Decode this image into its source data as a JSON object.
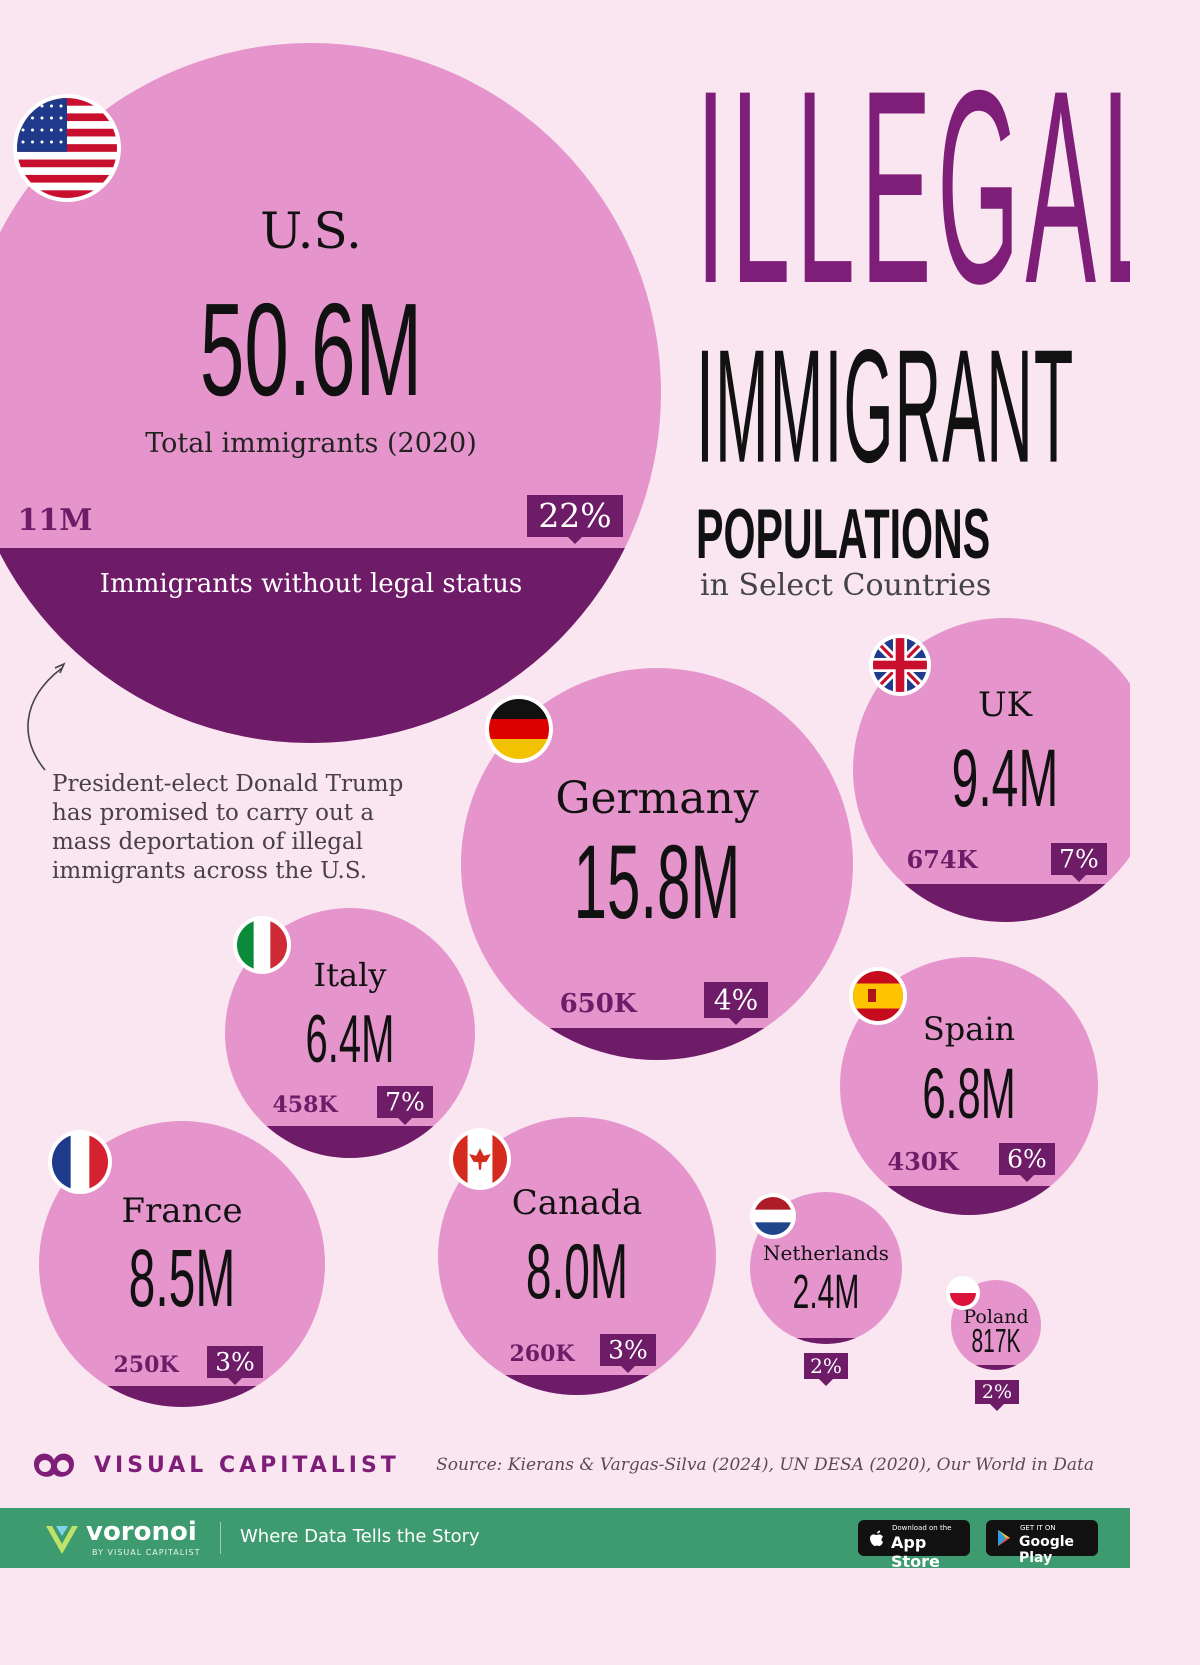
{
  "title": {
    "line1": "ILLEGAL",
    "line2": "IMMIGRANT",
    "line3": "POPULATIONS",
    "subtitle": "in Select Countries"
  },
  "chart_data": {
    "type": "bubble",
    "title": "ILLEGAL IMMIGRANT POPULATIONS in Select Countries",
    "total_label": "Total immigrants (2020)",
    "illegal_label": "Immigrants without legal status",
    "countries": [
      {
        "key": "us",
        "name": "U.S.",
        "total": 50.6,
        "total_label": "50.6M",
        "illegal_label": "11M",
        "pct": 22,
        "pct_label": "22%",
        "flag": "us-flag"
      },
      {
        "key": "uk",
        "name": "UK",
        "total": 9.4,
        "total_label": "9.4M",
        "illegal_label": "674K",
        "pct": 7,
        "pct_label": "7%",
        "flag": "uk-flag"
      },
      {
        "key": "germany",
        "name": "Germany",
        "total": 15.8,
        "total_label": "15.8M",
        "illegal_label": "650K",
        "pct": 4,
        "pct_label": "4%",
        "flag": "germany-flag"
      },
      {
        "key": "italy",
        "name": "Italy",
        "total": 6.4,
        "total_label": "6.4M",
        "illegal_label": "458K",
        "pct": 7,
        "pct_label": "7%",
        "flag": "italy-flag"
      },
      {
        "key": "spain",
        "name": "Spain",
        "total": 6.8,
        "total_label": "6.8M",
        "illegal_label": "430K",
        "pct": 6,
        "pct_label": "6%",
        "flag": "spain-flag"
      },
      {
        "key": "france",
        "name": "France",
        "total": 8.5,
        "total_label": "8.5M",
        "illegal_label": "250K",
        "pct": 3,
        "pct_label": "3%",
        "flag": "france-flag"
      },
      {
        "key": "canada",
        "name": "Canada",
        "total": 8.0,
        "total_label": "8.0M",
        "illegal_label": "260K",
        "pct": 3,
        "pct_label": "3%",
        "flag": "canada-flag"
      },
      {
        "key": "netherlands",
        "name": "Netherlands",
        "total": 2.4,
        "total_label": "2.4M",
        "illegal_label": "",
        "pct": 2,
        "pct_label": "2%",
        "flag": "netherlands-flag"
      },
      {
        "key": "poland",
        "name": "Poland",
        "total": 0.817,
        "total_label": "817K",
        "illegal_label": "",
        "pct": 2,
        "pct_label": "2%",
        "flag": "poland-flag"
      }
    ]
  },
  "note": "President-elect Donald Trump has promised to carry out a mass deportation of illegal immigrants across the U.S.",
  "brand": "VISUAL CAPITALIST",
  "source": "Source: Kierans & Vargas-Silva (2024), UN DESA (2020), Our World in Data",
  "footer": {
    "name": "voronoi",
    "by": "BY VISUAL CAPITALIST",
    "tagline": "Where Data Tells the Story",
    "appstore_small": "Download on the",
    "appstore_big": "App Store",
    "googleplay_small": "GET IT ON",
    "googleplay_big": "Google Play"
  },
  "colors": {
    "background": "#f9e6f1",
    "bubble": "#e595cc",
    "illegal_segment": "#6e1b68",
    "accent": "#7e1e78",
    "text": "#111111",
    "footer": "#3e9a6f"
  }
}
